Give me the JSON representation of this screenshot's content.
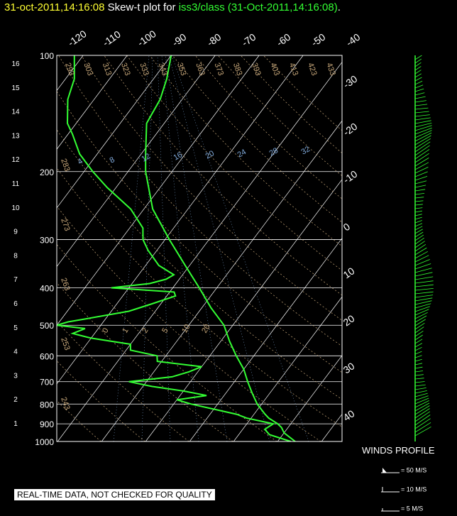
{
  "title": {
    "timestamp": "31-oct-2011,14:16:08",
    "prefix": " Skew-t plot for ",
    "source": "iss3/class (31-Oct-2011,14:16:08)",
    "suffix": "."
  },
  "quality_notice": "REAL-TIME DATA, NOT CHECKED FOR QUALITY",
  "winds": {
    "title": "WINDS PROFILE",
    "legend": [
      "= 50 M/S",
      "= 10 M/S",
      "= 5 M/S"
    ]
  },
  "colors": {
    "background": "#000000",
    "trace": "#33ff33",
    "grid": "#ffffff",
    "dry_adiabat": "#c8a87a",
    "mixing_ratio": "#7fa8d8",
    "title_time": "#ffff33",
    "title_source": "#33ff33"
  },
  "chart_data": {
    "type": "line",
    "chart_kind": "skew-t log-p",
    "pressure_levels": [
      100,
      200,
      300,
      400,
      500,
      600,
      700,
      800,
      900,
      1000
    ],
    "pressure_labels": [
      "100",
      "200",
      "300",
      "400",
      "500",
      "600",
      "700",
      "800",
      "900",
      "1000"
    ],
    "height_km_labels": [
      "1",
      "2",
      "3",
      "4",
      "5",
      "6",
      "7",
      "8",
      "9",
      "10",
      "11",
      "12",
      "13",
      "14",
      "15",
      "16"
    ],
    "isotherm_labels_top": [
      "-120",
      "-110",
      "-100",
      "-90",
      "-80",
      "-70",
      "-60",
      "-50",
      "-40"
    ],
    "isotherm_labels_right": [
      "-30",
      "-20",
      "-10",
      "0",
      "10",
      "20",
      "30",
      "40"
    ],
    "dry_adiabat_labels": [
      "293",
      "303",
      "313",
      "323",
      "333",
      "343",
      "353",
      "363",
      "373",
      "383",
      "393",
      "403",
      "413",
      "423",
      "433"
    ],
    "dry_adiabat_labels_left": [
      "283",
      "273",
      "263",
      "253",
      "243"
    ],
    "mixing_ratio_labels": [
      "4",
      "8",
      "12",
      "16",
      "20",
      "24",
      "28",
      "32"
    ],
    "moist_labels": [
      "0",
      "1",
      "2",
      "5",
      "10",
      "20"
    ],
    "temperature_c": [
      [
        1000,
        24
      ],
      [
        950,
        20
      ],
      [
        920,
        18.5
      ],
      [
        900,
        17
      ],
      [
        870,
        14
      ],
      [
        850,
        12.5
      ],
      [
        800,
        9
      ],
      [
        750,
        6
      ],
      [
        700,
        3
      ],
      [
        650,
        0
      ],
      [
        600,
        -4
      ],
      [
        550,
        -8
      ],
      [
        500,
        -12
      ],
      [
        450,
        -18
      ],
      [
        400,
        -24
      ],
      [
        350,
        -31
      ],
      [
        300,
        -39
      ],
      [
        250,
        -48
      ],
      [
        200,
        -56
      ],
      [
        180,
        -59
      ],
      [
        150,
        -64
      ],
      [
        130,
        -65
      ],
      [
        115,
        -67
      ],
      [
        100,
        -70
      ]
    ],
    "dewpoint_c": [
      [
        1000,
        23
      ],
      [
        960,
        17
      ],
      [
        930,
        15
      ],
      [
        900,
        16
      ],
      [
        870,
        9
      ],
      [
        850,
        6
      ],
      [
        800,
        -6
      ],
      [
        780,
        -10
      ],
      [
        760,
        -4
      ],
      [
        740,
        -10
      ],
      [
        720,
        -18
      ],
      [
        700,
        -24
      ],
      [
        680,
        -15
      ],
      [
        660,
        -12
      ],
      [
        640,
        -10
      ],
      [
        620,
        -21
      ],
      [
        600,
        -22
      ],
      [
        580,
        -29
      ],
      [
        560,
        -30
      ],
      [
        540,
        -40
      ],
      [
        525,
        -45
      ],
      [
        510,
        -43
      ],
      [
        500,
        -50
      ],
      [
        490,
        -48
      ],
      [
        480,
        -44
      ],
      [
        460,
        -36
      ],
      [
        440,
        -32
      ],
      [
        420,
        -28
      ],
      [
        410,
        -29
      ],
      [
        400,
        -44
      ],
      [
        390,
        -36
      ],
      [
        380,
        -33
      ],
      [
        370,
        -32
      ],
      [
        350,
        -37
      ],
      [
        320,
        -42
      ],
      [
        300,
        -45
      ],
      [
        280,
        -47
      ],
      [
        250,
        -53
      ],
      [
        220,
        -62
      ],
      [
        200,
        -68
      ],
      [
        180,
        -74
      ],
      [
        160,
        -79
      ],
      [
        150,
        -82
      ],
      [
        130,
        -86
      ],
      [
        115,
        -88
      ],
      [
        100,
        -92
      ]
    ]
  }
}
